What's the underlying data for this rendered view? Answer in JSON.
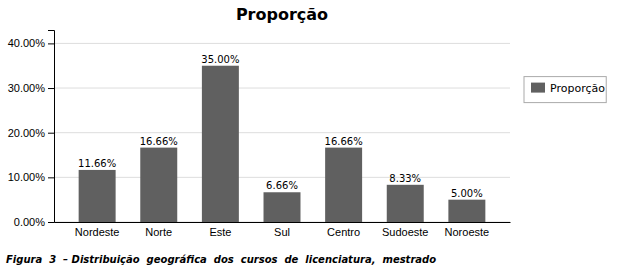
{
  "chart_data": {
    "type": "bar",
    "title": "Proporção",
    "categories": [
      "Nordeste",
      "Norte",
      "Este",
      "Sul",
      "Centro",
      "Sudoeste",
      "Noroeste"
    ],
    "series": [
      {
        "name": "Proporção",
        "color": "#606060",
        "values": [
          0.1166,
          0.1666,
          0.35,
          0.0666,
          0.1666,
          0.0833,
          0.05
        ],
        "value_labels": [
          "11.66%",
          "16.66%",
          "35.00%",
          "6.66%",
          "16.66%",
          "8.33%",
          "5.00%"
        ]
      }
    ],
    "ylim": [
      0,
      0.43
    ],
    "yticks": [
      {
        "value": 0.0,
        "label": "0.00%"
      },
      {
        "value": 0.1,
        "label": "10.00%"
      },
      {
        "value": 0.2,
        "label": "20.00%"
      },
      {
        "value": 0.3,
        "label": "30.00%"
      },
      {
        "value": 0.4,
        "label": "40.00%"
      }
    ],
    "grid": true,
    "data_labels": true,
    "legend": "right",
    "caption": "Figura  3  – Distribuição  geográfica  dos  cursos  de  licenciatura,  mestrado"
  }
}
